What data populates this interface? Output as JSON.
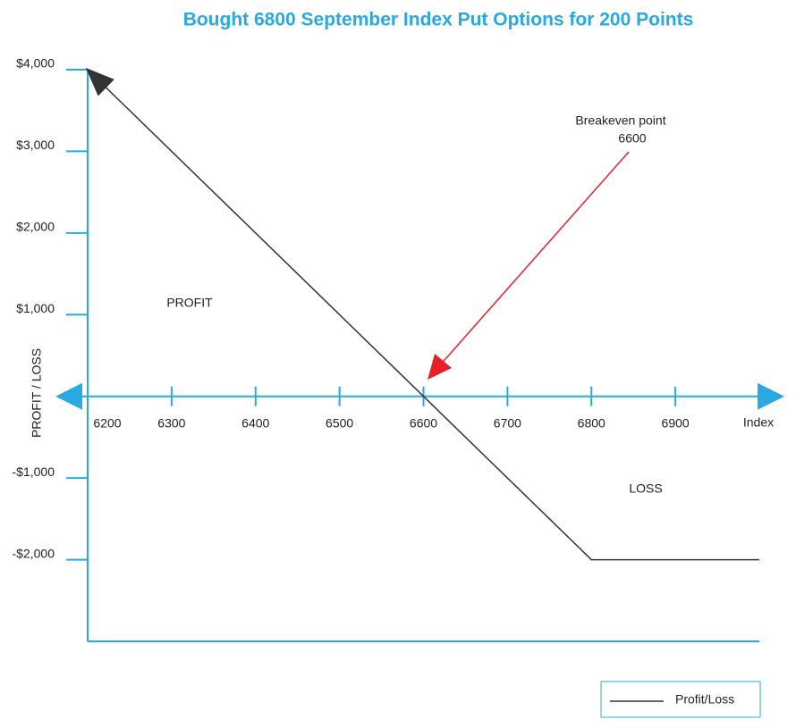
{
  "chart_data": {
    "type": "line",
    "title": "Bought 6800 September Index Put Options for 200 Points",
    "ylabel": "PROFIT / LOSS",
    "xlabel": "Index",
    "x": [
      6200,
      6600,
      6800,
      7000
    ],
    "series": [
      {
        "name": "Profit/Loss",
        "color": "#333333",
        "values": [
          4000,
          0,
          -2000,
          -2000
        ]
      }
    ],
    "xlim": [
      6200,
      7000
    ],
    "ylim": [
      -3000,
      4000
    ],
    "xticks": [
      6200,
      6300,
      6400,
      6500,
      6600,
      6700,
      6800,
      6900
    ],
    "yticks": [
      {
        "value": 4000,
        "label": "$4,000"
      },
      {
        "value": 3000,
        "label": "$3,000"
      },
      {
        "value": 2000,
        "label": "$2,000"
      },
      {
        "value": 1000,
        "label": "$1,000"
      },
      {
        "value": -1000,
        "label": "-$1,000"
      },
      {
        "value": -2000,
        "label": "-$2,000"
      }
    ],
    "annotations": [
      "Breakeven point",
      "6600",
      "PROFIT",
      "LOSS"
    ],
    "legend": "bottom-right"
  }
}
